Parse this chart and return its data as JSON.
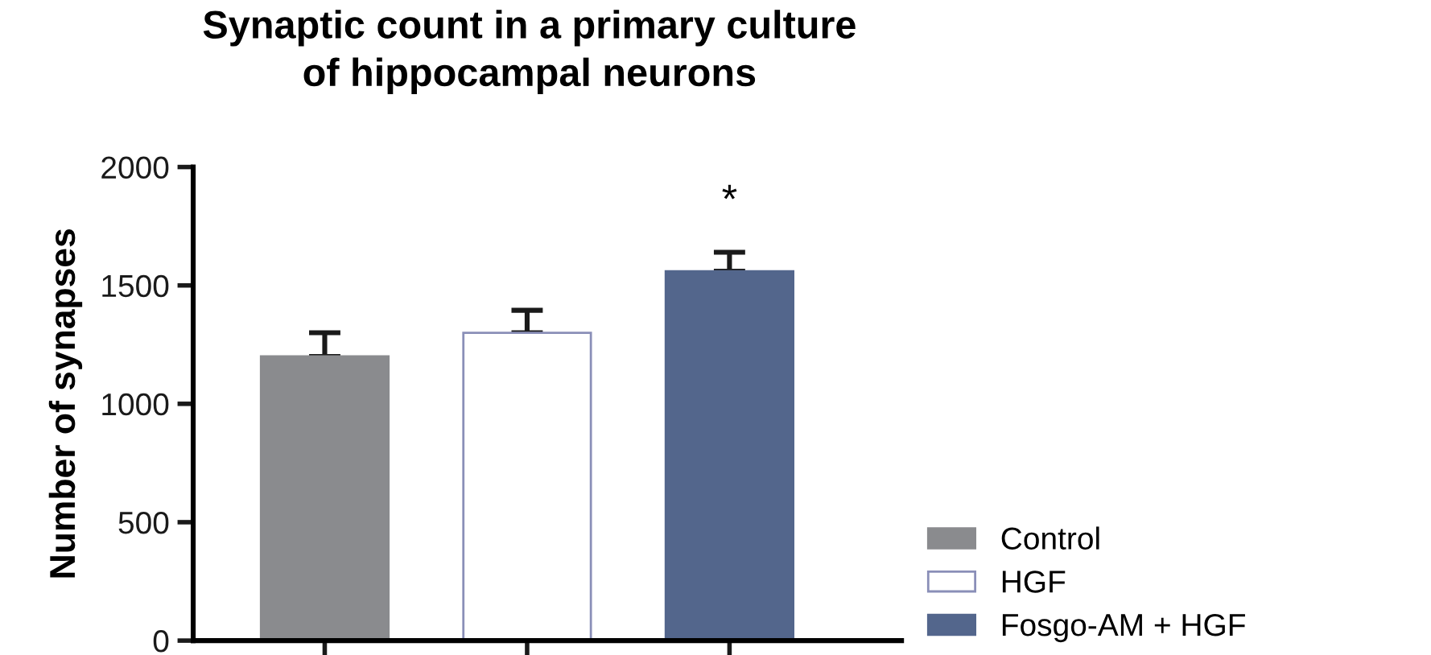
{
  "chart_data": {
    "type": "bar",
    "title": "Synaptic count in a primary culture\nof hippocampal neurons",
    "ylabel": "Number of synapses",
    "categories": [
      null,
      null,
      null
    ],
    "series": [
      {
        "name": "Control",
        "color": "#8a8b8e",
        "values": [
          1200,
          null,
          null
        ],
        "errors": [
          [
            1200,
            1300
          ],
          null,
          null
        ]
      },
      {
        "name": "HGF",
        "color": "#ffffff",
        "values": [
          null,
          1300,
          null
        ],
        "errors": [
          null,
          [
            1300,
            1395
          ],
          null
        ]
      },
      {
        "name": "Fosgo-AM + HGF",
        "color": "#53668c",
        "values": [
          null,
          null,
          1560
        ],
        "errors": [
          null,
          null,
          [
            1560,
            1640
          ]
        ]
      }
    ],
    "annotations": [
      "*"
    ],
    "ylim": [
      0,
      2000
    ],
    "yticks": [
      0,
      500,
      1000,
      1500,
      2000
    ],
    "grid": false,
    "legend": "bottom right"
  }
}
